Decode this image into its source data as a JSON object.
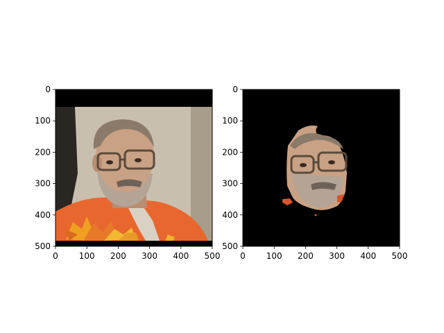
{
  "chart_data": [
    {
      "type": "image",
      "panel": "left",
      "description_of_content": "photo",
      "xlim": [
        0,
        500
      ],
      "ylim": [
        500,
        0
      ],
      "xticks": [
        0,
        100,
        200,
        300,
        400,
        500
      ],
      "yticks": [
        0,
        100,
        200,
        300,
        400,
        500
      ],
      "xtick_labels": [
        "0",
        "100",
        "200",
        "300",
        "400",
        "500"
      ],
      "ytick_labels": [
        "0",
        "100",
        "200",
        "300",
        "400",
        "500"
      ],
      "title": "",
      "xlabel": "",
      "ylabel": "",
      "grid": false
    },
    {
      "type": "image",
      "panel": "right",
      "description_of_content": "segmented face",
      "xlim": [
        0,
        500
      ],
      "ylim": [
        500,
        0
      ],
      "xticks": [
        0,
        100,
        200,
        300,
        400,
        500
      ],
      "yticks": [
        0,
        100,
        200,
        300,
        400,
        500
      ],
      "xtick_labels": [
        "0",
        "100",
        "200",
        "300",
        "400",
        "500"
      ],
      "ytick_labels": [
        "0",
        "100",
        "200",
        "300",
        "400",
        "500"
      ],
      "title": "",
      "xlabel": "",
      "ylabel": "",
      "grid": false
    }
  ],
  "colors": {
    "frame": "#000000",
    "background": "#ffffff",
    "masked": "#000000",
    "prison_uniform": "#e8672e",
    "wall": "#c9bfae",
    "skin": "#c9a184",
    "hair": "#8a7a6a",
    "leaf": "#f0a020"
  }
}
